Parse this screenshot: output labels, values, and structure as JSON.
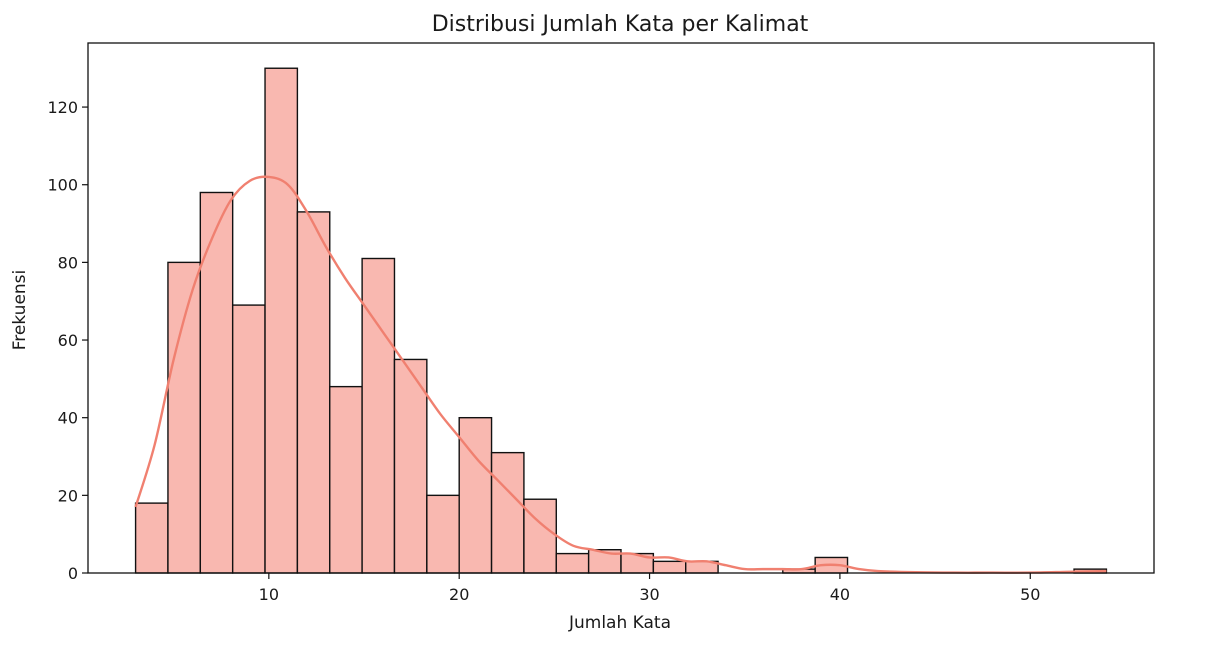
{
  "chart_data": {
    "type": "bar",
    "title": "Distribusi Jumlah Kata per Kalimat",
    "xlabel": "Jumlah Kata",
    "ylabel": "Frekuensi",
    "xlim": [
      0.5,
      56.5
    ],
    "ylim": [
      0,
      136.5
    ],
    "xticks": [
      10,
      20,
      30,
      40,
      50
    ],
    "yticks": [
      0,
      20,
      40,
      60,
      80,
      100,
      120
    ],
    "bins": [
      {
        "x0": 3.0,
        "x1": 4.7,
        "count": 18
      },
      {
        "x0": 4.7,
        "x1": 6.4,
        "count": 80
      },
      {
        "x0": 6.4,
        "x1": 8.1,
        "count": 98
      },
      {
        "x0": 8.1,
        "x1": 9.8,
        "count": 69
      },
      {
        "x0": 9.8,
        "x1": 11.5,
        "count": 130
      },
      {
        "x0": 11.5,
        "x1": 13.2,
        "count": 93
      },
      {
        "x0": 13.2,
        "x1": 14.9,
        "count": 48
      },
      {
        "x0": 14.9,
        "x1": 16.6,
        "count": 81
      },
      {
        "x0": 16.6,
        "x1": 18.3,
        "count": 55
      },
      {
        "x0": 18.3,
        "x1": 20.0,
        "count": 20
      },
      {
        "x0": 20.0,
        "x1": 21.7,
        "count": 40
      },
      {
        "x0": 21.7,
        "x1": 23.4,
        "count": 31
      },
      {
        "x0": 23.4,
        "x1": 25.1,
        "count": 19
      },
      {
        "x0": 25.1,
        "x1": 26.8,
        "count": 5
      },
      {
        "x0": 26.8,
        "x1": 28.5,
        "count": 6
      },
      {
        "x0": 28.5,
        "x1": 30.2,
        "count": 5
      },
      {
        "x0": 30.2,
        "x1": 31.9,
        "count": 3
      },
      {
        "x0": 31.9,
        "x1": 33.6,
        "count": 3
      },
      {
        "x0": 33.6,
        "x1": 35.3,
        "count": 0
      },
      {
        "x0": 35.3,
        "x1": 37.0,
        "count": 0
      },
      {
        "x0": 37.0,
        "x1": 38.7,
        "count": 1
      },
      {
        "x0": 38.7,
        "x1": 40.4,
        "count": 4
      },
      {
        "x0": 40.4,
        "x1": 42.1,
        "count": 0
      },
      {
        "x0": 42.1,
        "x1": 43.8,
        "count": 0
      },
      {
        "x0": 43.8,
        "x1": 45.5,
        "count": 0
      },
      {
        "x0": 45.5,
        "x1": 47.2,
        "count": 0
      },
      {
        "x0": 47.2,
        "x1": 48.9,
        "count": 0
      },
      {
        "x0": 48.9,
        "x1": 50.6,
        "count": 0
      },
      {
        "x0": 50.6,
        "x1": 52.3,
        "count": 0
      },
      {
        "x0": 52.3,
        "x1": 54.0,
        "count": 1
      }
    ],
    "kde": {
      "x": [
        3,
        4,
        5,
        6,
        7,
        8,
        9,
        10,
        11,
        12,
        13,
        14,
        15,
        16,
        17,
        18,
        19,
        20,
        21,
        22,
        23,
        24,
        25,
        26,
        27,
        28,
        29,
        30,
        31,
        32,
        33,
        34,
        35,
        36,
        37,
        38,
        39,
        40,
        41,
        42,
        44,
        46,
        48,
        50,
        52,
        54
      ],
      "y": [
        17,
        33,
        55,
        73,
        86,
        96,
        101,
        102,
        100,
        93,
        84,
        76,
        69,
        62,
        55,
        48,
        41,
        35,
        29,
        24,
        19,
        14,
        10,
        7,
        6,
        5,
        5,
        4,
        4,
        3,
        3,
        2,
        1,
        1,
        1,
        1,
        2,
        2,
        1,
        0.5,
        0.2,
        0.1,
        0.1,
        0.1,
        0.3,
        0.5
      ]
    },
    "grid": false,
    "colors": {
      "bar_fill": "#f9b8b0",
      "bar_edge": "#111111",
      "kde_line": "#f08070"
    }
  }
}
